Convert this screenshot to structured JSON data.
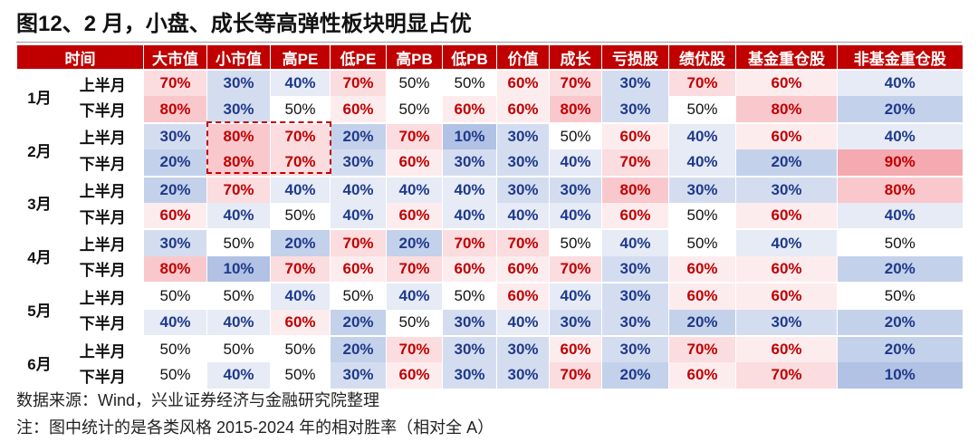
{
  "title": "图12、2 月，小盘、成长等高弹性板块明显占优",
  "table": {
    "header": [
      "时间",
      "大市值",
      "小市值",
      "高PE",
      "低PE",
      "高PB",
      "低PB",
      "价值",
      "成长",
      "亏损股",
      "绩优股",
      "基金重仓股",
      "非基金重仓股"
    ],
    "months": [
      {
        "month": "1月",
        "halves": [
          {
            "label": "上半月",
            "values": [
              "70%",
              "30%",
              "40%",
              "70%",
              "50%",
              "50%",
              "60%",
              "70%",
              "30%",
              "70%",
              "60%",
              "40%"
            ]
          },
          {
            "label": "下半月",
            "values": [
              "80%",
              "30%",
              "50%",
              "60%",
              "50%",
              "60%",
              "60%",
              "80%",
              "30%",
              "50%",
              "80%",
              "20%"
            ]
          }
        ]
      },
      {
        "month": "2月",
        "halves": [
          {
            "label": "上半月",
            "values": [
              "30%",
              "80%",
              "70%",
              "20%",
              "70%",
              "10%",
              "30%",
              "50%",
              "60%",
              "40%",
              "60%",
              "40%"
            ]
          },
          {
            "label": "下半月",
            "values": [
              "20%",
              "80%",
              "70%",
              "30%",
              "60%",
              "30%",
              "30%",
              "40%",
              "70%",
              "40%",
              "20%",
              "90%"
            ]
          }
        ]
      },
      {
        "month": "3月",
        "halves": [
          {
            "label": "上半月",
            "values": [
              "20%",
              "70%",
              "40%",
              "40%",
              "40%",
              "40%",
              "30%",
              "30%",
              "80%",
              "30%",
              "30%",
              "80%"
            ]
          },
          {
            "label": "下半月",
            "values": [
              "60%",
              "40%",
              "50%",
              "40%",
              "60%",
              "40%",
              "40%",
              "40%",
              "60%",
              "50%",
              "60%",
              "40%"
            ]
          }
        ]
      },
      {
        "month": "4月",
        "halves": [
          {
            "label": "上半月",
            "values": [
              "30%",
              "50%",
              "20%",
              "70%",
              "20%",
              "70%",
              "70%",
              "50%",
              "40%",
              "50%",
              "40%",
              "50%"
            ]
          },
          {
            "label": "下半月",
            "values": [
              "80%",
              "10%",
              "70%",
              "60%",
              "70%",
              "60%",
              "60%",
              "70%",
              "30%",
              "60%",
              "60%",
              "20%"
            ]
          }
        ]
      },
      {
        "month": "5月",
        "halves": [
          {
            "label": "上半月",
            "values": [
              "50%",
              "50%",
              "40%",
              "50%",
              "40%",
              "50%",
              "60%",
              "40%",
              "30%",
              "60%",
              "60%",
              "50%"
            ]
          },
          {
            "label": "下半月",
            "values": [
              "40%",
              "40%",
              "60%",
              "20%",
              "50%",
              "30%",
              "40%",
              "30%",
              "30%",
              "20%",
              "30%",
              "20%"
            ]
          }
        ]
      },
      {
        "month": "6月",
        "halves": [
          {
            "label": "上半月",
            "values": [
              "50%",
              "50%",
              "50%",
              "20%",
              "70%",
              "30%",
              "30%",
              "60%",
              "30%",
              "70%",
              "60%",
              "20%"
            ]
          },
          {
            "label": "下半月",
            "values": [
              "50%",
              "40%",
              "50%",
              "30%",
              "60%",
              "30%",
              "30%",
              "70%",
              "20%",
              "60%",
              "70%",
              "10%"
            ]
          }
        ]
      }
    ]
  },
  "notes": [
    "数据来源：Wind，兴业证券经济与金融研究院整理",
    "注：图中统计的是各类风格 2015-2024 年的相对胜率（相对全 A）"
  ]
}
